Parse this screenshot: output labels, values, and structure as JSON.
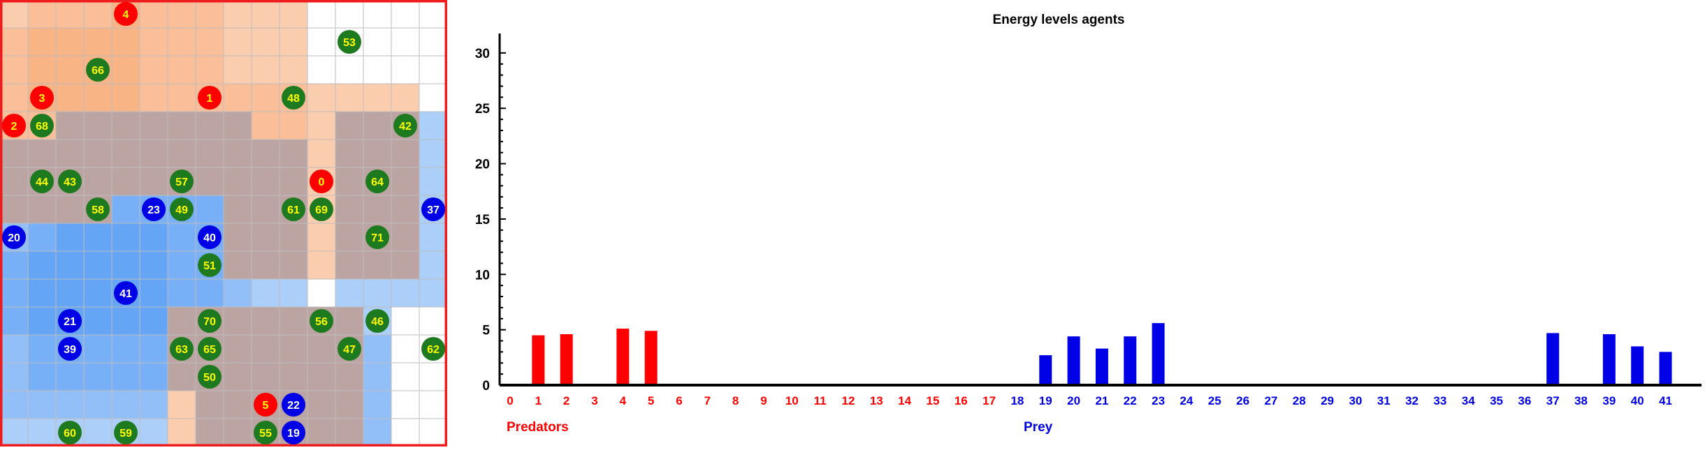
{
  "grid": {
    "rows": 16,
    "cols": 16,
    "colors": {
      "predator_zone": "#f9b080",
      "prey_zone": "#5da0f5",
      "overlap_zone": "#b59a98",
      "line": "#bdbdbd",
      "frame": "#ee1c1c",
      "predator": "#ff0000",
      "prey": "#0000e6",
      "food": "#1e7a1e",
      "predator_text": "#ffff00",
      "prey_text": "#ffffff",
      "food_text": "#ffff00"
    },
    "predators": [
      {
        "id": "4",
        "col": 4,
        "row": 0
      },
      {
        "id": "3",
        "col": 1,
        "row": 3
      },
      {
        "id": "1",
        "col": 7,
        "row": 3
      },
      {
        "id": "2",
        "col": 0,
        "row": 4
      },
      {
        "id": "0",
        "col": 11,
        "row": 6
      },
      {
        "id": "5",
        "col": 9,
        "row": 14
      }
    ],
    "prey": [
      {
        "id": "23",
        "col": 5,
        "row": 7
      },
      {
        "id": "37",
        "col": 15,
        "row": 7
      },
      {
        "id": "20",
        "col": 0,
        "row": 8
      },
      {
        "id": "40",
        "col": 7,
        "row": 8
      },
      {
        "id": "41",
        "col": 4,
        "row": 10
      },
      {
        "id": "21",
        "col": 2,
        "row": 11
      },
      {
        "id": "39",
        "col": 2,
        "row": 12
      },
      {
        "id": "22",
        "col": 10,
        "row": 14
      },
      {
        "id": "19",
        "col": 10,
        "row": 15
      }
    ],
    "food": [
      {
        "id": "53",
        "col": 12,
        "row": 1
      },
      {
        "id": "66",
        "col": 3,
        "row": 2
      },
      {
        "id": "48",
        "col": 10,
        "row": 3
      },
      {
        "id": "68",
        "col": 1,
        "row": 4
      },
      {
        "id": "42",
        "col": 14,
        "row": 4
      },
      {
        "id": "44",
        "col": 1,
        "row": 6
      },
      {
        "id": "43",
        "col": 2,
        "row": 6
      },
      {
        "id": "57",
        "col": 6,
        "row": 6
      },
      {
        "id": "64",
        "col": 13,
        "row": 6
      },
      {
        "id": "58",
        "col": 3,
        "row": 7
      },
      {
        "id": "49",
        "col": 6,
        "row": 7
      },
      {
        "id": "61",
        "col": 10,
        "row": 7
      },
      {
        "id": "69",
        "col": 11,
        "row": 7
      },
      {
        "id": "71",
        "col": 13,
        "row": 8
      },
      {
        "id": "51",
        "col": 7,
        "row": 9
      },
      {
        "id": "70",
        "col": 7,
        "row": 11
      },
      {
        "id": "56",
        "col": 11,
        "row": 11
      },
      {
        "id": "46",
        "col": 13,
        "row": 11
      },
      {
        "id": "63",
        "col": 6,
        "row": 12
      },
      {
        "id": "65",
        "col": 7,
        "row": 12
      },
      {
        "id": "47",
        "col": 12,
        "row": 12
      },
      {
        "id": "62",
        "col": 15,
        "row": 12
      },
      {
        "id": "50",
        "col": 7,
        "row": 13
      },
      {
        "id": "60",
        "col": 2,
        "row": 15
      },
      {
        "id": "59",
        "col": 4,
        "row": 15
      },
      {
        "id": "55",
        "col": 9,
        "row": 15
      }
    ]
  },
  "chart_data": {
    "type": "bar",
    "title": "Energy levels agents",
    "categories": [
      "0",
      "1",
      "2",
      "3",
      "4",
      "5",
      "6",
      "7",
      "8",
      "9",
      "10",
      "11",
      "12",
      "13",
      "14",
      "15",
      "16",
      "17",
      "18",
      "19",
      "20",
      "21",
      "22",
      "23",
      "24",
      "25",
      "26",
      "27",
      "28",
      "29",
      "30",
      "31",
      "32",
      "33",
      "34",
      "35",
      "36",
      "37",
      "38",
      "39",
      "40",
      "41"
    ],
    "series": [
      {
        "name": "Predators",
        "color": "#ff0000",
        "values": [
          0,
          4.5,
          4.6,
          0,
          5.1,
          4.9,
          0,
          0,
          0,
          0,
          0,
          0,
          0,
          0,
          0,
          0,
          0,
          0,
          null,
          null,
          null,
          null,
          null,
          null,
          null,
          null,
          null,
          null,
          null,
          null,
          null,
          null,
          null,
          null,
          null,
          null,
          null,
          null,
          null,
          null,
          null,
          null
        ]
      },
      {
        "name": "Prey",
        "color": "#0000e6",
        "values": [
          null,
          null,
          null,
          null,
          null,
          null,
          null,
          null,
          null,
          null,
          null,
          null,
          null,
          null,
          null,
          null,
          null,
          null,
          0,
          2.7,
          4.4,
          3.3,
          4.4,
          5.6,
          0,
          0,
          0,
          0,
          0,
          0,
          0,
          0,
          0,
          0,
          0,
          0,
          0,
          4.7,
          0,
          4.6,
          3.5,
          3.0
        ]
      }
    ],
    "yticks": [
      "0",
      "5",
      "10",
      "15",
      "20",
      "25",
      "30"
    ],
    "ylim": [
      0,
      31
    ],
    "legend": [
      "Predators",
      "Prey"
    ]
  }
}
